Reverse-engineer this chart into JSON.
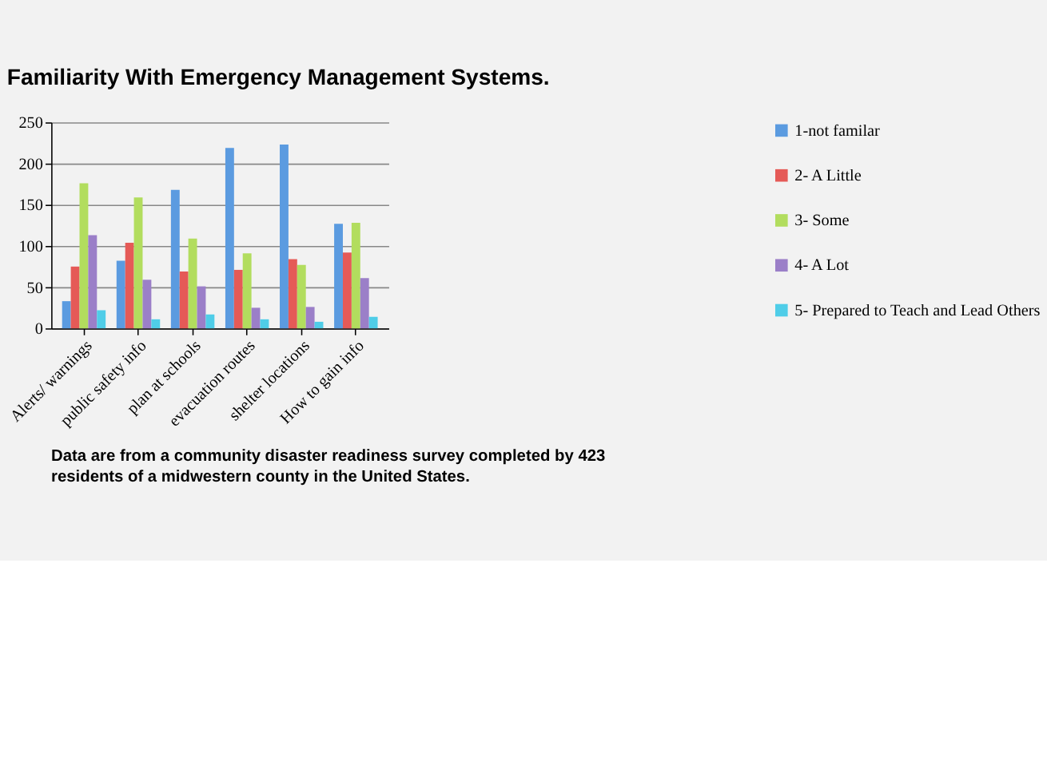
{
  "chart_data": {
    "type": "bar",
    "title": "Familiarity With Emergency Management Systems.",
    "categories": [
      "Alerts/ warnings",
      "public safety info",
      "plan at schools",
      "evacuation routes",
      "shelter locations",
      "How to gain info"
    ],
    "series": [
      {
        "name": "1-not familar",
        "color": "#5b9be0",
        "values": [
          33,
          82,
          168,
          219,
          223,
          127
        ]
      },
      {
        "name": "2- A Little",
        "color": "#e55a57",
        "values": [
          75,
          104,
          69,
          71,
          84,
          92
        ]
      },
      {
        "name": "3- Some",
        "color": "#b2dd5e",
        "values": [
          176,
          159,
          109,
          91,
          77,
          128
        ]
      },
      {
        "name": "4- A Lot",
        "color": "#9b7fc8",
        "values": [
          113,
          59,
          51,
          25,
          26,
          61
        ]
      },
      {
        "name": "5- Prepared to Teach and Lead Others",
        "color": "#4fcde8",
        "values": [
          22,
          11,
          17,
          11,
          8,
          14
        ]
      }
    ],
    "ylim": [
      0,
      250
    ],
    "yticks": [
      0,
      50,
      100,
      150,
      200,
      250
    ],
    "grid": "y",
    "legend": "right",
    "annotations": [
      "Data are from a community disaster readiness survey completed by 423 residents of a midwestern county in the United States."
    ]
  }
}
